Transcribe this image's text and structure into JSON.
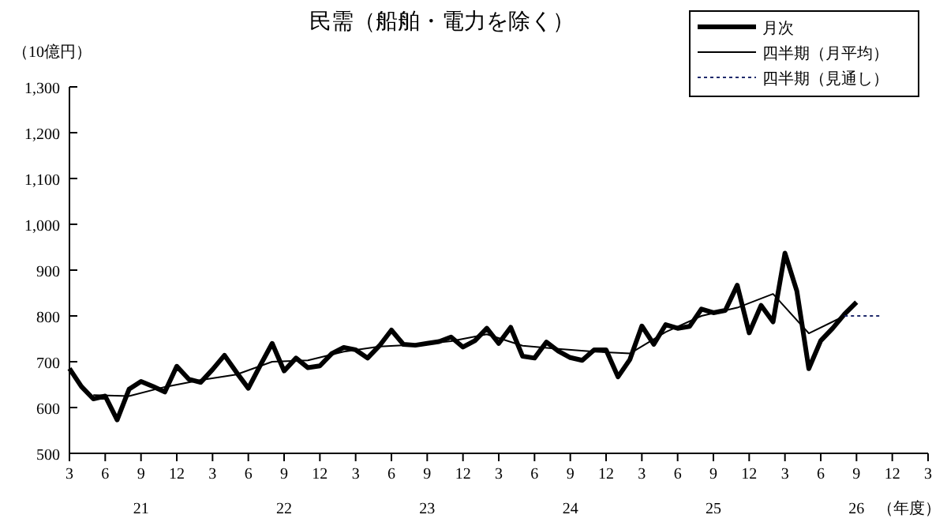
{
  "chart_data": {
    "type": "line",
    "title": "民需（船舶・電力を除く）",
    "ylabel": "（10億円）",
    "xlabel": "（年度）",
    "categories": [
      "3",
      null,
      null,
      "6",
      null,
      null,
      "9",
      null,
      null,
      "12",
      null,
      null,
      "3",
      null,
      null,
      "6",
      null,
      null,
      "9",
      null,
      null,
      "12",
      null,
      null,
      "3",
      null,
      null,
      "6",
      null,
      null,
      "9",
      null,
      null,
      "12",
      null,
      null,
      "3",
      null,
      null,
      "6",
      null,
      null,
      "9",
      null,
      null,
      "12",
      null,
      null,
      "3",
      null,
      null,
      "6",
      null,
      null,
      "9",
      null,
      null,
      "12",
      null,
      null,
      "3",
      null,
      null,
      "6",
      null,
      null,
      "9",
      null,
      null,
      "12",
      null,
      null,
      "3"
    ],
    "annotations": [
      "21",
      "22",
      "23",
      "24",
      "25",
      "26"
    ],
    "ylim": [
      500,
      1300
    ],
    "yticks": [
      500,
      600,
      700,
      800,
      900,
      {
        "value": 1000,
        "label": "1,000"
      },
      {
        "value": 1100,
        "label": "1,100"
      },
      {
        "value": 1200,
        "label": "1,200"
      },
      {
        "value": 1300,
        "label": "1,300"
      }
    ],
    "grid": false,
    "legend": "top right",
    "marker": "none",
    "series": [
      {
        "name": "月次",
        "color": "#000000",
        "line_style": "solid",
        "values": [
          685,
          646,
          619,
          625,
          573,
          640,
          657,
          646,
          634,
          690,
          662,
          655,
          683,
          714,
          677,
          642,
          692,
          740,
          680,
          708,
          687,
          691,
          718,
          731,
          726,
          708,
          735,
          769,
          738,
          736,
          740,
          744,
          754,
          732,
          746,
          773,
          740,
          775,
          712,
          708,
          743,
          723,
          709,
          703,
          726,
          726,
          667,
          705,
          778,
          738,
          781,
          773,
          777,
          815,
          807,
          812,
          867,
          763,
          823,
          787,
          937,
          854,
          685,
          746,
          773,
          804,
          830,
          null,
          null,
          null,
          null,
          null,
          null
        ]
      },
      {
        "name": "四半期（月平均）",
        "color": "#000000",
        "line_style": "solid",
        "values": [
          null,
          null,
          627,
          null,
          null,
          625,
          null,
          null,
          645,
          null,
          null,
          660,
          null,
          null,
          672,
          null,
          null,
          700,
          null,
          null,
          703,
          null,
          null,
          722,
          null,
          null,
          733,
          null,
          null,
          737,
          null,
          null,
          745,
          null,
          null,
          760,
          null,
          null,
          735,
          null,
          null,
          728,
          null,
          null,
          722,
          null,
          null,
          718,
          null,
          null,
          765,
          null,
          null,
          800,
          null,
          null,
          818,
          null,
          null,
          848,
          null,
          null,
          762,
          null,
          null,
          800,
          null,
          null,
          null,
          null,
          null,
          null,
          null
        ]
      },
      {
        "name": "四半期（見通し）",
        "color": "#1f2a6b",
        "line_style": "dotted",
        "values": [
          null,
          null,
          null,
          null,
          null,
          null,
          null,
          null,
          null,
          null,
          null,
          null,
          null,
          null,
          null,
          null,
          null,
          null,
          null,
          null,
          null,
          null,
          null,
          null,
          null,
          null,
          null,
          null,
          null,
          null,
          null,
          null,
          null,
          null,
          null,
          null,
          null,
          null,
          null,
          null,
          null,
          null,
          null,
          null,
          null,
          null,
          null,
          null,
          null,
          null,
          null,
          null,
          null,
          null,
          null,
          null,
          null,
          null,
          null,
          null,
          null,
          null,
          null,
          null,
          null,
          800,
          null,
          null,
          800,
          null,
          null,
          null,
          null
        ]
      }
    ]
  }
}
